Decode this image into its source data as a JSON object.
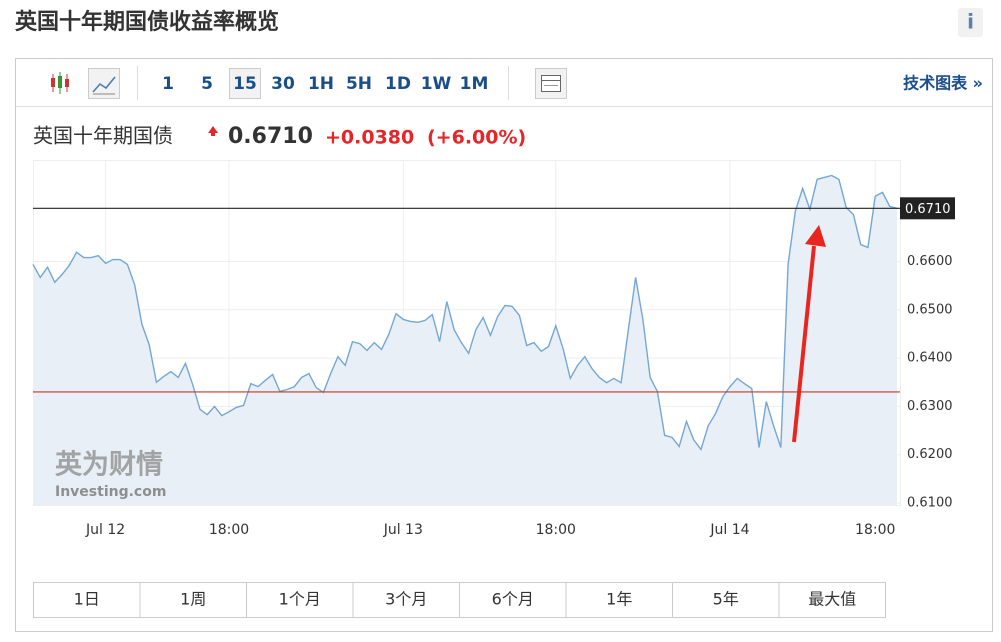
{
  "header": {
    "title": "英国十年期国债收益率概览",
    "info": "i"
  },
  "toolbar": {
    "intervals": [
      "1",
      "5",
      "15",
      "30",
      "1H",
      "5H",
      "1D",
      "1W",
      "1M"
    ],
    "active_interval": 2,
    "technical_charts": "技术图表 »"
  },
  "quote": {
    "name": "英国十年期国债",
    "price": "0.6710",
    "change": "+0.0380",
    "change_pct": "(+6.00%)"
  },
  "watermark": {
    "cn": "英为财情",
    "en": "Investing.com"
  },
  "chart_data": {
    "type": "area",
    "color": "#74a7d6",
    "fill_color": "#e8eff6",
    "grid": true,
    "categories": [
      null,
      null,
      null,
      null,
      null,
      null,
      null,
      null,
      null,
      null,
      "Jul 12",
      null,
      null,
      null,
      null,
      null,
      null,
      null,
      null,
      null,
      null,
      null,
      null,
      null,
      null,
      null,
      null,
      "18:00",
      null,
      null,
      null,
      null,
      null,
      null,
      null,
      null,
      null,
      null,
      null,
      null,
      null,
      null,
      null,
      null,
      null,
      null,
      null,
      null,
      null,
      null,
      null,
      "Jul 13",
      null,
      null,
      null,
      null,
      null,
      null,
      null,
      null,
      null,
      null,
      null,
      null,
      null,
      null,
      null,
      null,
      null,
      null,
      null,
      null,
      "18:00",
      null,
      null,
      null,
      null,
      null,
      null,
      null,
      null,
      null,
      null,
      null,
      null,
      null,
      null,
      null,
      null,
      null,
      null,
      null,
      null,
      null,
      null,
      null,
      "Jul 14",
      null,
      null,
      null,
      null,
      null,
      null,
      null,
      null,
      null,
      null,
      null,
      null,
      null,
      null,
      null,
      null,
      null,
      null,
      null,
      "18:00",
      null,
      null,
      null
    ],
    "values": [
      0.6594,
      0.6567,
      0.6588,
      0.6557,
      0.6573,
      0.6592,
      0.6619,
      0.6608,
      0.6608,
      0.6612,
      0.6596,
      0.6604,
      0.6604,
      0.6594,
      0.6552,
      0.647,
      0.6428,
      0.635,
      0.6362,
      0.6372,
      0.636,
      0.6389,
      0.6345,
      0.6294,
      0.6283,
      0.63,
      0.6281,
      0.6289,
      0.6298,
      0.6302,
      0.6347,
      0.6341,
      0.6354,
      0.6366,
      0.6331,
      0.6335,
      0.6341,
      0.636,
      0.6368,
      0.6339,
      0.6329,
      0.6368,
      0.6403,
      0.6385,
      0.6434,
      0.643,
      0.6416,
      0.6432,
      0.6418,
      0.6449,
      0.6492,
      0.648,
      0.6476,
      0.6474,
      0.6478,
      0.649,
      0.6434,
      0.6517,
      0.6459,
      0.6432,
      0.641,
      0.6459,
      0.6484,
      0.6447,
      0.6486,
      0.6509,
      0.6507,
      0.6488,
      0.6426,
      0.6432,
      0.6414,
      0.6424,
      0.6467,
      0.642,
      0.6358,
      0.6385,
      0.6403,
      0.6378,
      0.636,
      0.6349,
      0.6358,
      0.6349,
      0.6459,
      0.6567,
      0.648,
      0.636,
      0.6331,
      0.624,
      0.6236,
      0.6217,
      0.6269,
      0.6231,
      0.6211,
      0.626,
      0.6285,
      0.632,
      0.6341,
      0.6358,
      0.6347,
      0.6337,
      0.6215,
      0.631,
      0.626,
      0.6215,
      0.6594,
      0.6704,
      0.6751,
      0.6708,
      0.677,
      0.6774,
      0.6778,
      0.677,
      0.6712,
      0.6697,
      0.6635,
      0.6629,
      0.6735,
      0.6743,
      0.6714,
      0.671
    ],
    "ylim": [
      0.6096,
      0.681
    ],
    "yticks": [
      {
        "value": 0.61,
        "label": "0.6100"
      },
      {
        "value": 0.62,
        "label": "0.6200"
      },
      {
        "value": 0.63,
        "label": "0.6300"
      },
      {
        "value": 0.64,
        "label": "0.6400"
      },
      {
        "value": 0.65,
        "label": "0.6500"
      },
      {
        "value": 0.66,
        "label": "0.6600"
      }
    ],
    "reference_lines": [
      {
        "value": 0.671,
        "label": "0.6710",
        "color": "#222222"
      },
      {
        "value": 0.633,
        "color": "#c0392b"
      }
    ]
  },
  "ranges": [
    "1日",
    "1周",
    "1个月",
    "3个月",
    "6个月",
    "1年",
    "5年",
    "最大值"
  ]
}
